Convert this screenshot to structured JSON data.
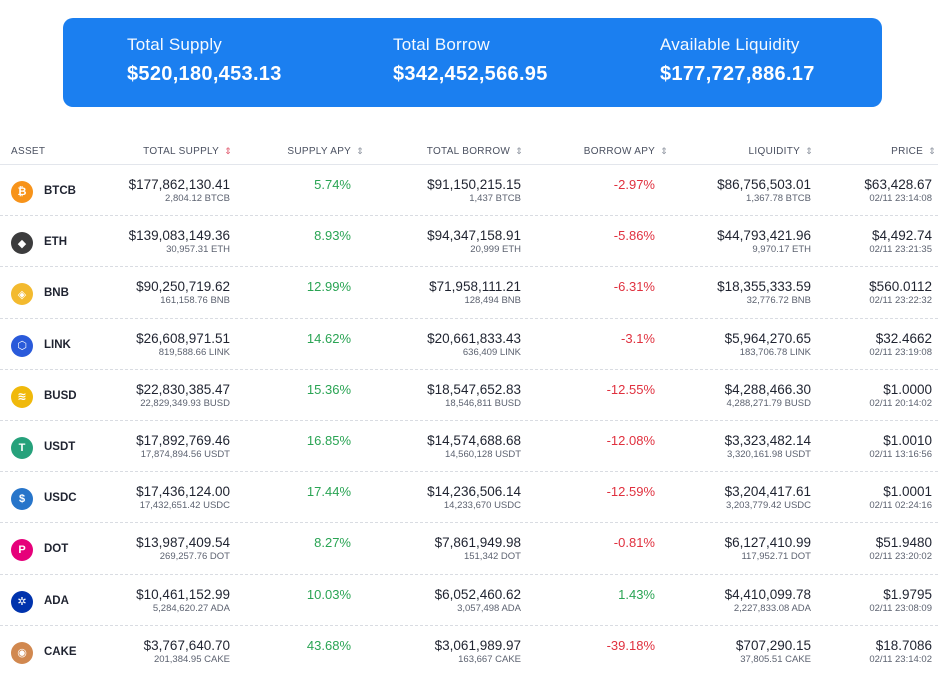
{
  "summary": {
    "total_supply_label": "Total Supply",
    "total_supply_value": "$520,180,453.13",
    "total_borrow_label": "Total Borrow",
    "total_borrow_value": "$342,452,566.95",
    "liquidity_label": "Available Liquidity",
    "liquidity_value": "$177,727,886.17"
  },
  "columns": {
    "asset": "ASSET",
    "total_supply": "TOTAL SUPPLY",
    "supply_apy": "SUPPLY APY",
    "total_borrow": "TOTAL BORROW",
    "borrow_apy": "BORROW APY",
    "liquidity": "LIQUIDITY",
    "price": "PRICE"
  },
  "colors": {
    "accent": "#1b7ff0",
    "positive": "#2aa454",
    "negative": "#e0313f"
  },
  "rows": [
    {
      "symbol": "BTCB",
      "icon": "bitcoin-icon",
      "icon_color": "#f7931a",
      "glyph": "₿",
      "supply_usd": "$177,862,130.41",
      "supply_amt": "2,804.12 BTCB",
      "supply_apy": "5.74%",
      "borrow_usd": "$91,150,215.15",
      "borrow_amt": "1,437 BTCB",
      "borrow_apy": "-2.97%",
      "liquidity_usd": "$86,756,503.01",
      "liquidity_amt": "1,367.78 BTCB",
      "price": "$63,428.67",
      "price_time": "02/11 23:14:08"
    },
    {
      "symbol": "ETH",
      "icon": "ethereum-icon",
      "icon_color": "#3c3c3d",
      "glyph": "◆",
      "supply_usd": "$139,083,149.36",
      "supply_amt": "30,957.31 ETH",
      "supply_apy": "8.93%",
      "borrow_usd": "$94,347,158.91",
      "borrow_amt": "20,999 ETH",
      "borrow_apy": "-5.86%",
      "liquidity_usd": "$44,793,421.96",
      "liquidity_amt": "9,970.17 ETH",
      "price": "$4,492.74",
      "price_time": "02/11 23:21:35"
    },
    {
      "symbol": "BNB",
      "icon": "bnb-icon",
      "icon_color": "#f3ba2f",
      "glyph": "◈",
      "supply_usd": "$90,250,719.62",
      "supply_amt": "161,158.76 BNB",
      "supply_apy": "12.99%",
      "borrow_usd": "$71,958,111.21",
      "borrow_amt": "128,494 BNB",
      "borrow_apy": "-6.31%",
      "liquidity_usd": "$18,355,333.59",
      "liquidity_amt": "32,776.72 BNB",
      "price": "$560.0112",
      "price_time": "02/11 23:22:32"
    },
    {
      "symbol": "LINK",
      "icon": "chainlink-icon",
      "icon_color": "#2a5ada",
      "glyph": "⬡",
      "supply_usd": "$26,608,971.51",
      "supply_amt": "819,588.66 LINK",
      "supply_apy": "14.62%",
      "borrow_usd": "$20,661,833.43",
      "borrow_amt": "636,409 LINK",
      "borrow_apy": "-3.1%",
      "liquidity_usd": "$5,964,270.65",
      "liquidity_amt": "183,706.78 LINK",
      "price": "$32.4662",
      "price_time": "02/11 23:19:08"
    },
    {
      "symbol": "BUSD",
      "icon": "busd-icon",
      "icon_color": "#f0b90b",
      "glyph": "≋",
      "supply_usd": "$22,830,385.47",
      "supply_amt": "22,829,349.93 BUSD",
      "supply_apy": "15.36%",
      "borrow_usd": "$18,547,652.83",
      "borrow_amt": "18,546,811 BUSD",
      "borrow_apy": "-12.55%",
      "liquidity_usd": "$4,288,466.30",
      "liquidity_amt": "4,288,271.79 BUSD",
      "price": "$1.0000",
      "price_time": "02/11 20:14:02"
    },
    {
      "symbol": "USDT",
      "icon": "tether-icon",
      "icon_color": "#26a17b",
      "glyph": "T",
      "supply_usd": "$17,892,769.46",
      "supply_amt": "17,874,894.56 USDT",
      "supply_apy": "16.85%",
      "borrow_usd": "$14,574,688.68",
      "borrow_amt": "14,560,128 USDT",
      "borrow_apy": "-12.08%",
      "liquidity_usd": "$3,323,482.14",
      "liquidity_amt": "3,320,161.98 USDT",
      "price": "$1.0010",
      "price_time": "02/11 13:16:56"
    },
    {
      "symbol": "USDC",
      "icon": "usdc-icon",
      "icon_color": "#2775ca",
      "glyph": "$",
      "supply_usd": "$17,436,124.00",
      "supply_amt": "17,432,651.42 USDC",
      "supply_apy": "17.44%",
      "borrow_usd": "$14,236,506.14",
      "borrow_amt": "14,233,670 USDC",
      "borrow_apy": "-12.59%",
      "liquidity_usd": "$3,204,417.61",
      "liquidity_amt": "3,203,779.42 USDC",
      "price": "$1.0001",
      "price_time": "02/11 02:24:16"
    },
    {
      "symbol": "DOT",
      "icon": "polkadot-icon",
      "icon_color": "#e6007a",
      "glyph": "P",
      "supply_usd": "$13,987,409.54",
      "supply_amt": "269,257.76 DOT",
      "supply_apy": "8.27%",
      "borrow_usd": "$7,861,949.98",
      "borrow_amt": "151,342 DOT",
      "borrow_apy": "-0.81%",
      "liquidity_usd": "$6,127,410.99",
      "liquidity_amt": "117,952.71 DOT",
      "price": "$51.9480",
      "price_time": "02/11 23:20:02"
    },
    {
      "symbol": "ADA",
      "icon": "cardano-icon",
      "icon_color": "#0033ad",
      "glyph": "✲",
      "supply_usd": "$10,461,152.99",
      "supply_amt": "5,284,620.27 ADA",
      "supply_apy": "10.03%",
      "borrow_usd": "$6,052,460.62",
      "borrow_amt": "3,057,498 ADA",
      "borrow_apy": "1.43%",
      "liquidity_usd": "$4,410,099.78",
      "liquidity_amt": "2,227,833.08 ADA",
      "price": "$1.9795",
      "price_time": "02/11 23:08:09"
    },
    {
      "symbol": "CAKE",
      "icon": "pancakeswap-icon",
      "icon_color": "#d1884f",
      "glyph": "◉",
      "supply_usd": "$3,767,640.70",
      "supply_amt": "201,384.95 CAKE",
      "supply_apy": "43.68%",
      "borrow_usd": "$3,061,989.97",
      "borrow_amt": "163,667 CAKE",
      "borrow_apy": "-39.18%",
      "liquidity_usd": "$707,290.15",
      "liquidity_amt": "37,805.51 CAKE",
      "price": "$18.7086",
      "price_time": "02/11 23:14:02"
    }
  ]
}
